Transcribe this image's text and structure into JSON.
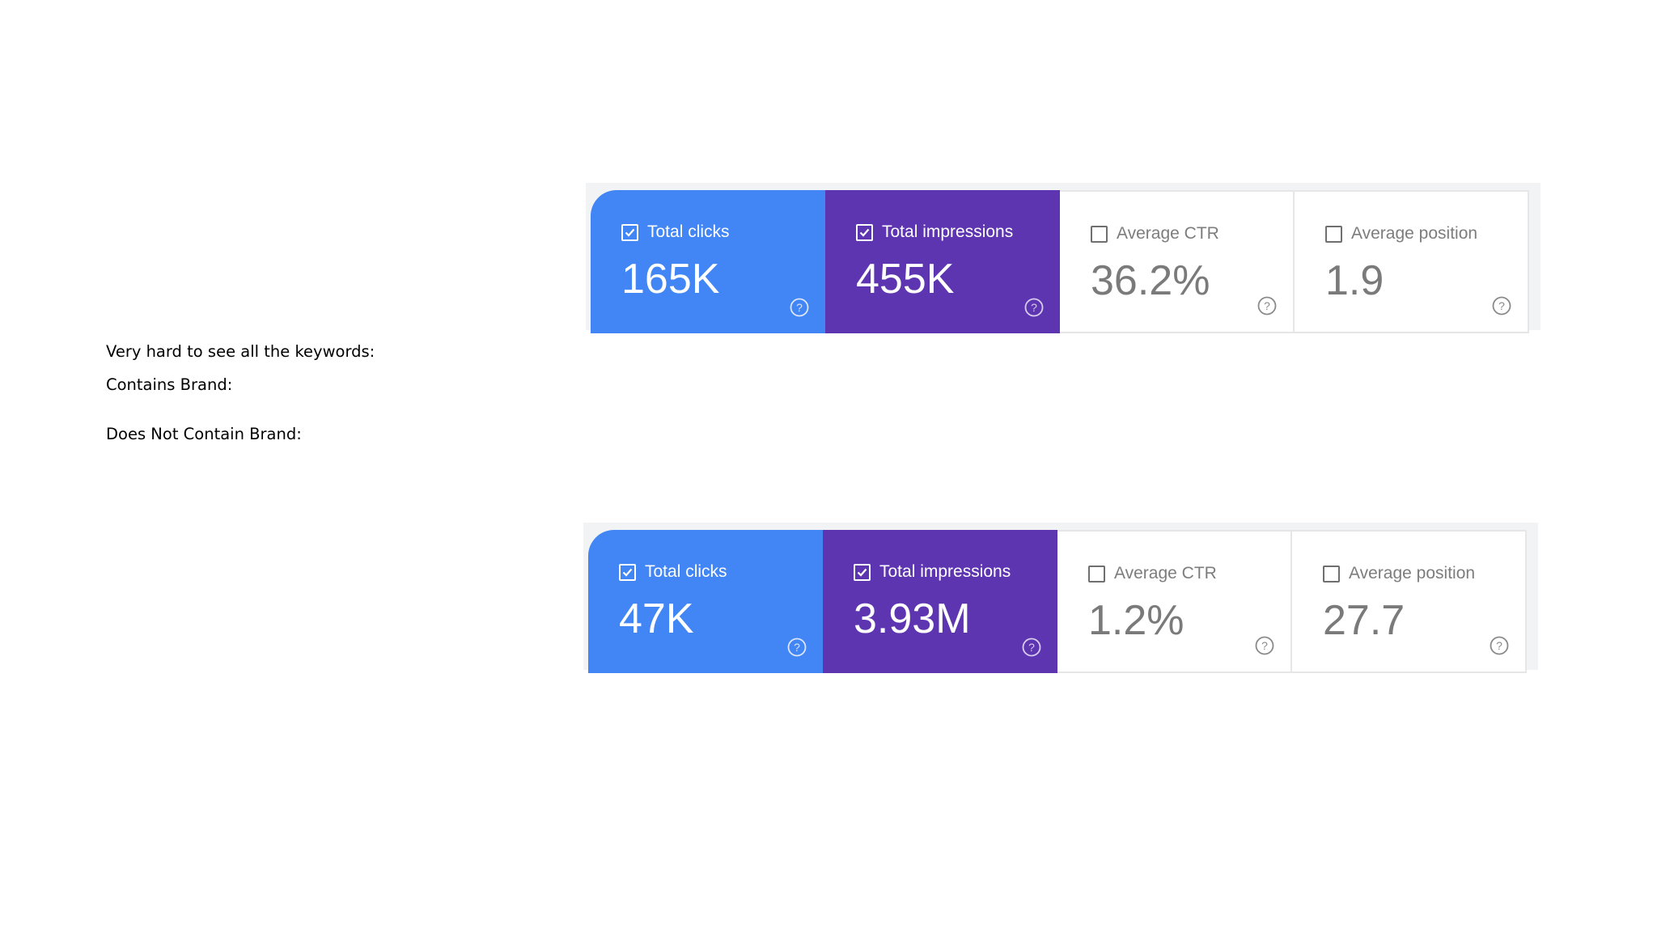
{
  "notes": {
    "keywords_note": "Very hard to see all the keywords:",
    "contains_brand": "Contains Brand:",
    "does_not_contain_brand": "Does Not Contain Brand:"
  },
  "colors": {
    "clicks": "#4285f4",
    "impressions": "#5e35b1"
  },
  "panels": [
    {
      "metrics": [
        {
          "label": "Total clicks",
          "value": "165K",
          "checked": true
        },
        {
          "label": "Total impressions",
          "value": "455K",
          "checked": true
        },
        {
          "label": "Average CTR",
          "value": "36.2%",
          "checked": false
        },
        {
          "label": "Average position",
          "value": "1.9",
          "checked": false
        }
      ]
    },
    {
      "metrics": [
        {
          "label": "Total clicks",
          "value": "47K",
          "checked": true
        },
        {
          "label": "Total impressions",
          "value": "3.93M",
          "checked": true
        },
        {
          "label": "Average CTR",
          "value": "1.2%",
          "checked": false
        },
        {
          "label": "Average position",
          "value": "27.7",
          "checked": false
        }
      ]
    }
  ],
  "icons": {
    "checkbox_checked": "check-icon",
    "checkbox_unchecked": "checkbox-empty",
    "help": "help-icon"
  }
}
